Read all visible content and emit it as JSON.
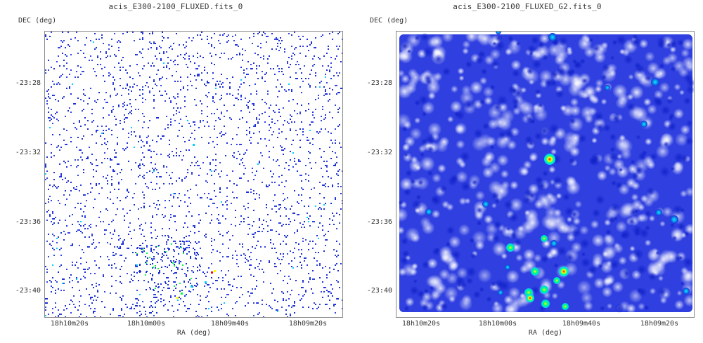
{
  "charts": {
    "left": {
      "title": "acis_E300-2100_FLUXED.fits_0",
      "ylabel": "DEC (deg)",
      "xlabel": "RA (deg)",
      "yticks": [
        "-23:28",
        "-23:32",
        "-23:36",
        "-23:40"
      ],
      "xticks": [
        "18h10m20s",
        "18h10m00s",
        "18h09m40s",
        "18h09m20s"
      ]
    },
    "right": {
      "title": "acis_E300-2100_FLUXED_G2.fits_0",
      "ylabel": "DEC (deg)",
      "xlabel": "RA (deg)",
      "yticks": [
        "-23:28",
        "-23:32",
        "-23:36",
        "-23:40"
      ],
      "xticks": [
        "18h10m20s",
        "18h10m00s",
        "18h09m40s",
        "18h09m20s"
      ]
    }
  },
  "chart_data": [
    {
      "type": "heatmap",
      "title": "acis_E300-2100_FLUXED.fits_0",
      "xlabel": "RA (deg)",
      "ylabel": "DEC (deg)",
      "x_ticks": [
        "18h10m20s",
        "18h10m00s",
        "18h09m40s",
        "18h09m20s"
      ],
      "y_ticks": [
        "-23:28",
        "-23:32",
        "-23:36",
        "-23:40"
      ],
      "colormap": [
        "#1a2fd6",
        "#00d0ff",
        "#00ff40",
        "#ffff00",
        "#ff0000"
      ],
      "background": "#ffffff",
      "grid": false
    },
    {
      "type": "heatmap",
      "title": "acis_E300-2100_FLUXED_G2.fits_0",
      "xlabel": "RA (deg)",
      "ylabel": "DEC (deg)",
      "x_ticks": [
        "18h10m20s",
        "18h10m00s",
        "18h09m40s",
        "18h09m20s"
      ],
      "y_ticks": [
        "-23:28",
        "-23:32",
        "-23:36",
        "-23:40"
      ],
      "colormap": [
        "#ffffff",
        "#4f5bea",
        "#1a2fd6",
        "#00d0ff",
        "#ffff00",
        "#ff0000"
      ],
      "background": "#2f3fe0",
      "grid": false
    }
  ]
}
